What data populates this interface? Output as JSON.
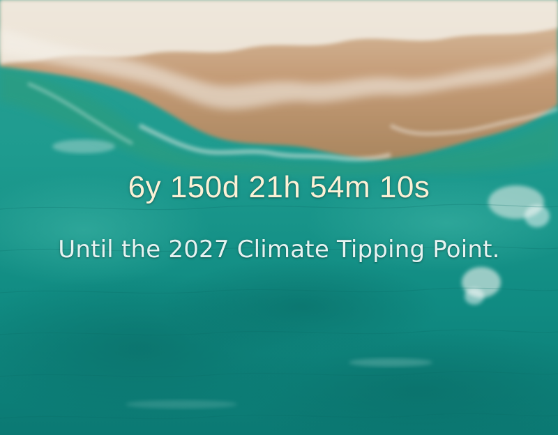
{
  "hero": {
    "countdown": "6y 150d 21h 54m 10s",
    "tagline": "Until the 2027 Climate Tipping Point."
  },
  "background": {
    "image": "aerial-ocean-shoreline-photo",
    "colors": {
      "sand": "#c9a27c",
      "foam": "#f3f0e8",
      "shallow_water": "#23a395",
      "deep_water": "#0d7f79"
    }
  },
  "text_colors": {
    "countdown": "#fbf1d6",
    "tagline": "#e6f3f1"
  }
}
